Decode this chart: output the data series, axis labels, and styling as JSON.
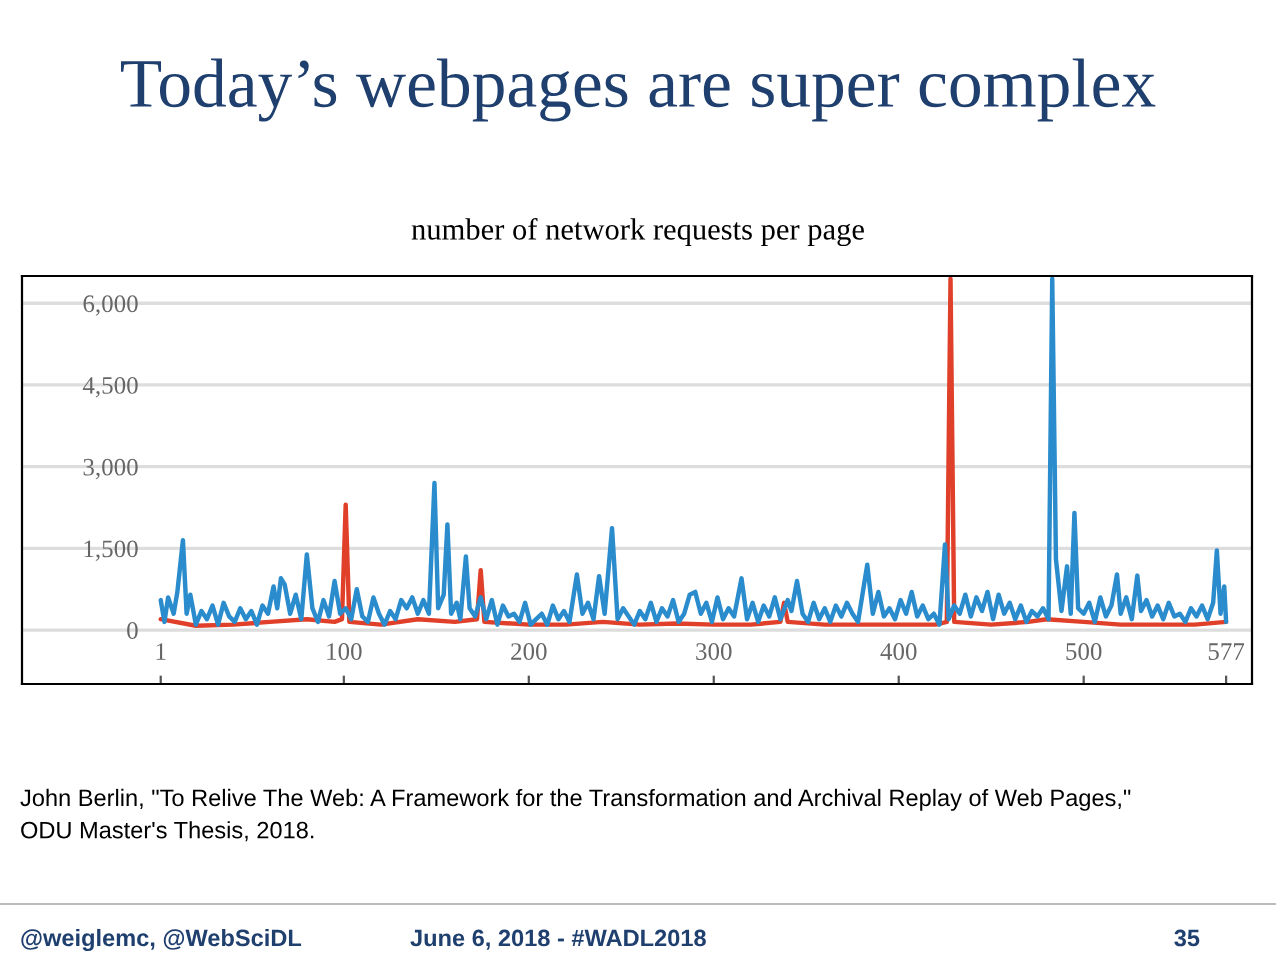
{
  "chart_data": {
    "type": "line",
    "title": "Today’s webpages are super complex",
    "subtitle": "number of network requests per page",
    "xlim": [
      -74,
      591
    ],
    "ylim": [
      -990,
      6500
    ],
    "xticks": [
      1,
      100,
      200,
      300,
      400,
      500,
      577
    ],
    "yticks": [
      {
        "value": 0,
        "label": "0"
      },
      {
        "value": 1500,
        "label": "1,500"
      },
      {
        "value": 3000,
        "label": "3,000"
      },
      {
        "value": 4500,
        "label": "4,500"
      },
      {
        "value": 6000,
        "label": "6,000"
      }
    ],
    "grid": "y",
    "series": [
      {
        "color": "#e0402a",
        "x": [
          1,
          20,
          40,
          60,
          80,
          95,
          99,
          101,
          103,
          120,
          140,
          160,
          172,
          174,
          176,
          200,
          220,
          240,
          260,
          280,
          300,
          320,
          336,
          338,
          340,
          360,
          380,
          400,
          420,
          426,
          428,
          430,
          450,
          470,
          480,
          500,
          520,
          540,
          560,
          577
        ],
        "values": [
          200,
          80,
          100,
          150,
          200,
          150,
          200,
          2300,
          150,
          100,
          200,
          150,
          200,
          1100,
          150,
          100,
          100,
          150,
          100,
          120,
          100,
          100,
          150,
          500,
          150,
          100,
          100,
          100,
          100,
          150,
          6450,
          150,
          100,
          150,
          200,
          150,
          100,
          100,
          100,
          150
        ]
      },
      {
        "color": "#2a8ccc",
        "x": [
          1,
          3,
          5,
          8,
          10,
          13,
          15,
          17,
          20,
          23,
          26,
          29,
          32,
          35,
          38,
          41,
          44,
          47,
          50,
          53,
          56,
          59,
          62,
          64,
          66,
          68,
          71,
          74,
          77,
          80,
          83,
          86,
          89,
          92,
          95,
          98,
          101,
          104,
          107,
          110,
          113,
          116,
          119,
          122,
          125,
          128,
          131,
          134,
          137,
          140,
          143,
          146,
          149,
          151,
          154,
          156,
          158,
          161,
          163,
          166,
          168,
          171,
          174,
          177,
          180,
          183,
          186,
          189,
          192,
          195,
          198,
          201,
          204,
          207,
          210,
          213,
          216,
          219,
          222,
          226,
          229,
          232,
          235,
          238,
          241,
          245,
          248,
          251,
          254,
          257,
          260,
          263,
          266,
          269,
          272,
          275,
          278,
          281,
          284,
          287,
          290,
          293,
          296,
          299,
          302,
          305,
          308,
          311,
          315,
          318,
          321,
          324,
          327,
          330,
          333,
          336,
          340,
          342,
          345,
          348,
          351,
          354,
          357,
          360,
          363,
          366,
          369,
          372,
          375,
          378,
          383,
          386,
          389,
          392,
          395,
          398,
          401,
          404,
          407,
          410,
          413,
          416,
          419,
          422,
          425,
          427,
          430,
          433,
          436,
          439,
          442,
          445,
          448,
          451,
          454,
          457,
          460,
          463,
          466,
          469,
          472,
          475,
          478,
          481,
          483,
          485,
          488,
          491,
          493,
          495,
          497,
          500,
          503,
          506,
          509,
          512,
          515,
          518,
          520,
          523,
          526,
          529,
          531,
          534,
          537,
          540,
          543,
          546,
          549,
          552,
          555,
          558,
          561,
          564,
          567,
          570,
          572,
          574,
          576,
          577
        ],
        "values": [
          550,
          150,
          600,
          300,
          700,
          1650,
          300,
          650,
          100,
          350,
          200,
          450,
          100,
          500,
          250,
          150,
          400,
          200,
          350,
          100,
          450,
          300,
          800,
          400,
          950,
          840,
          300,
          650,
          200,
          1390,
          400,
          150,
          550,
          250,
          900,
          300,
          400,
          200,
          750,
          250,
          150,
          600,
          300,
          100,
          350,
          200,
          550,
          400,
          600,
          300,
          550,
          300,
          2700,
          400,
          650,
          1940,
          300,
          500,
          200,
          1350,
          400,
          250,
          600,
          200,
          550,
          100,
          450,
          250,
          300,
          150,
          500,
          100,
          200,
          300,
          100,
          450,
          200,
          350,
          150,
          1020,
          300,
          500,
          200,
          990,
          300,
          1870,
          200,
          400,
          250,
          100,
          350,
          200,
          500,
          150,
          400,
          250,
          550,
          150,
          300,
          650,
          700,
          300,
          500,
          150,
          600,
          200,
          400,
          250,
          950,
          200,
          500,
          150,
          450,
          250,
          600,
          200,
          550,
          350,
          900,
          300,
          150,
          500,
          200,
          400,
          150,
          450,
          250,
          500,
          300,
          150,
          1200,
          300,
          700,
          250,
          400,
          200,
          550,
          300,
          700,
          250,
          450,
          200,
          300,
          100,
          1570,
          200,
          450,
          300,
          650,
          250,
          600,
          350,
          700,
          200,
          650,
          300,
          500,
          200,
          450,
          150,
          350,
          250,
          400,
          200,
          6450,
          1300,
          350,
          1170,
          300,
          2150,
          400,
          300,
          500,
          150,
          600,
          250,
          450,
          1020,
          300,
          600,
          200,
          1000,
          350,
          550,
          250,
          450,
          200,
          500,
          250,
          300,
          150,
          400,
          250,
          450,
          200,
          500,
          1460,
          300,
          800,
          150
        ]
      }
    ],
    "annotations": [
      "John Berlin, \"To Relive The Web: A Framework for the Transformation and Archival Replay of Web Pages,\"\nODU Master's Thesis, 2018.",
      "@weiglemc, @WebSciDL",
      "June 6, 2018 - #WADL2018",
      "35"
    ]
  }
}
